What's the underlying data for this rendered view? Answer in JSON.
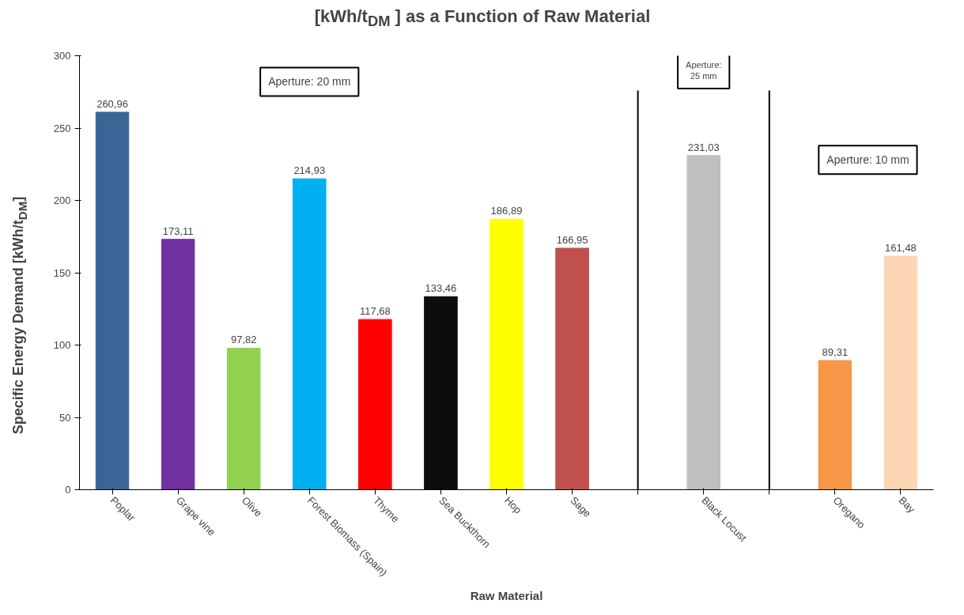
{
  "chart_data": {
    "type": "bar",
    "title": "[kWh/t$_{DM}$ ] as a Function of Raw Material",
    "xlabel": "Raw Material",
    "ylabel": "Specific Energy Demand [kWh/t$_{DM}$]",
    "categories": [
      "Poplar",
      "Grape vine",
      "Olive",
      "Forest Biomass (Spain)",
      "Thyme",
      "Sea Buckthorn",
      "Hop",
      "Sage",
      null,
      "Black Locust",
      null,
      "Oregano",
      "Bay"
    ],
    "values": [
      260.96,
      173.11,
      97.82,
      214.93,
      117.68,
      133.46,
      186.89,
      166.95,
      null,
      231.03,
      null,
      89.31,
      161.48
    ],
    "colors": [
      "#3a6597",
      "#7030a0",
      "#92d050",
      "#00b0f0",
      "#ff0000",
      "#0d0d0d",
      "#ffff00",
      "#c0504d",
      "#ffffff",
      "#bfbfbf",
      "#ffffff",
      "#f79646",
      "#fcd5b5"
    ],
    "value_labels": [
      "260,96",
      "173,11",
      "97,82",
      "214,93",
      "117,68",
      "133,46",
      "186,89",
      "166,95",
      null,
      "231,03",
      null,
      "89,31",
      "161,48"
    ],
    "ylim": [
      0,
      300
    ],
    "yticks": [
      0,
      50,
      100,
      150,
      200,
      250,
      300
    ],
    "annotations": [
      "Aperture: 20 mm",
      "Aperture:\n25 mm",
      "Aperture: 10 mm"
    ]
  }
}
